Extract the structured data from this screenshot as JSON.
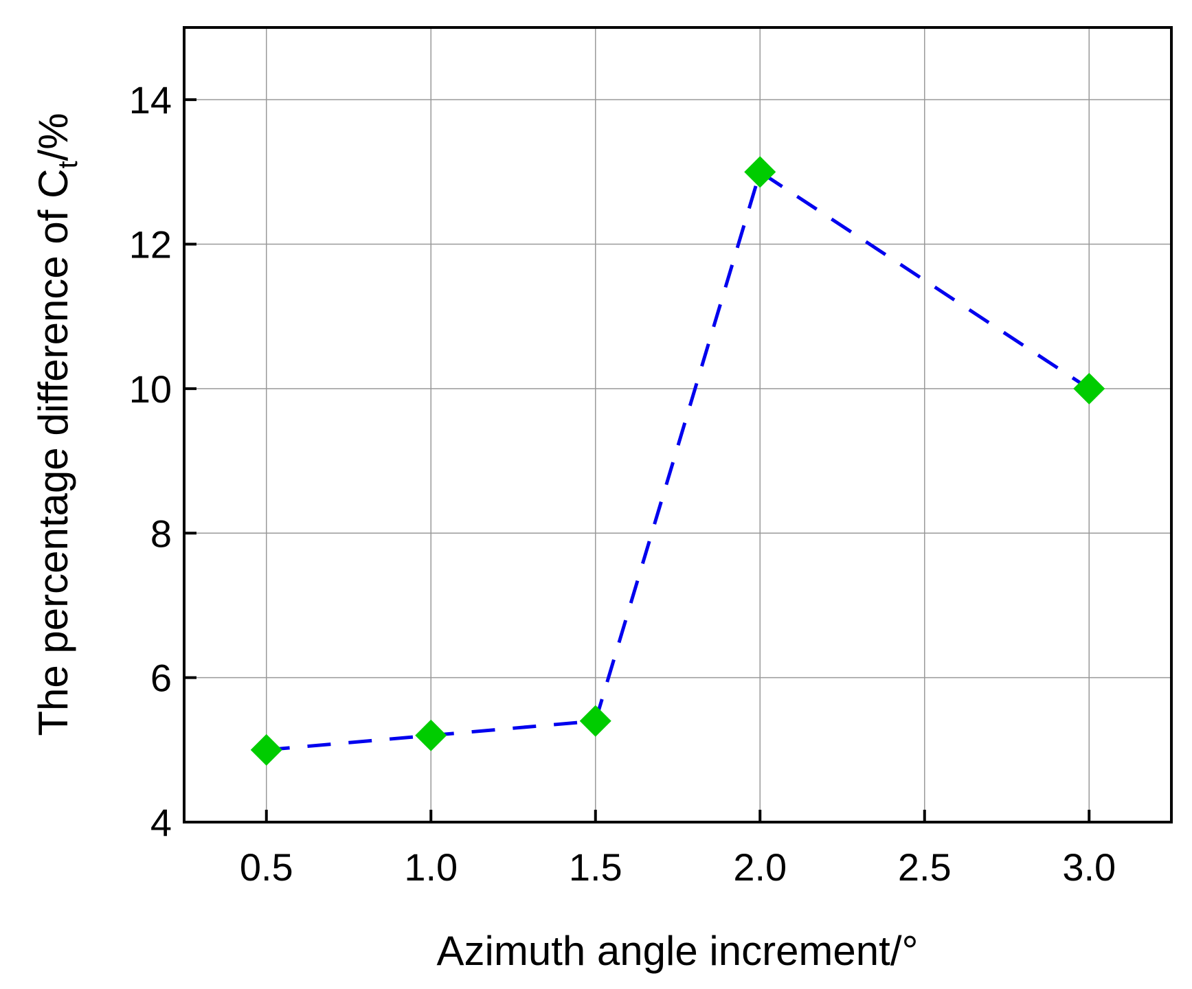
{
  "chart_data": {
    "type": "line",
    "xlabel": "Azimuth angle increment/°",
    "ylabel_main": "The percentage difference of C",
    "ylabel_sub": "t",
    "ylabel_tail": "/%",
    "x_ticks": [
      "0.5",
      "1.0",
      "1.5",
      "2.0",
      "2.5",
      "3.0"
    ],
    "y_ticks": [
      "4",
      "6",
      "8",
      "10",
      "12",
      "14"
    ],
    "xlim": [
      0.25,
      3.25
    ],
    "ylim": [
      4,
      15
    ],
    "grid": true,
    "series": [
      {
        "x": [
          0.5,
          1.0,
          1.5,
          2.0,
          3.0
        ],
        "y": [
          5.0,
          5.2,
          5.4,
          13.0,
          10.0
        ],
        "line_color": "#0000ee",
        "line_style": "dashed",
        "marker": "diamond",
        "marker_color": "#00cc00"
      }
    ]
  }
}
